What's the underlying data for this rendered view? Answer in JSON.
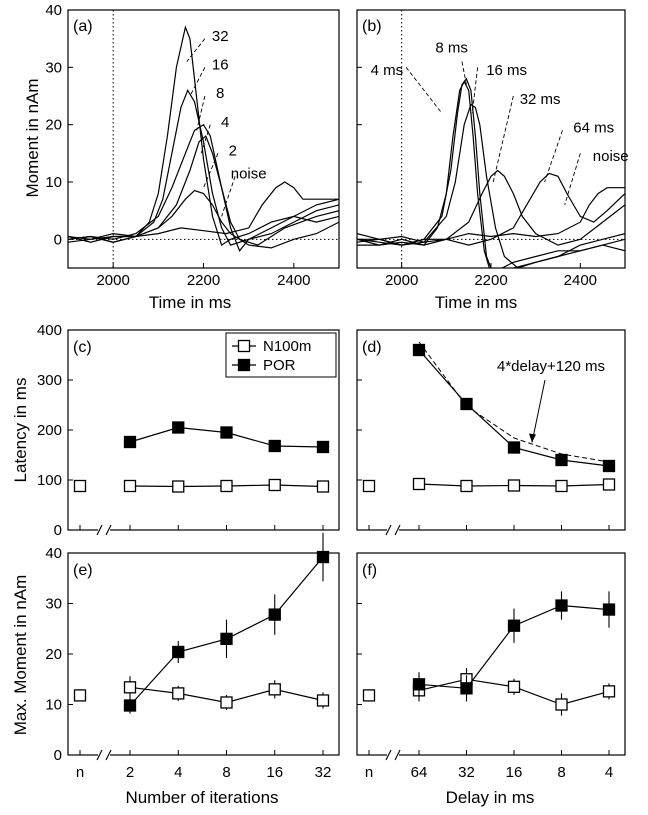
{
  "chart_data": [
    {
      "id": "a",
      "type": "line",
      "panel_label": "(a)",
      "xlabel": "Time in ms",
      "ylabel": "Moment in nAm",
      "xlim": [
        1900,
        2500
      ],
      "ylim": [
        -5,
        40
      ],
      "xticks": [
        2000,
        2200,
        2400
      ],
      "yticks": [
        0,
        10,
        20,
        30,
        40
      ],
      "vline_x": 2000,
      "hline_y": 0,
      "series": [
        {
          "name": "32",
          "x": [
            1900,
            1950,
            2000,
            2050,
            2080,
            2100,
            2120,
            2140,
            2160,
            2170,
            2180,
            2200,
            2220,
            2240,
            2260,
            2300,
            2350,
            2400,
            2450,
            2500
          ],
          "y": [
            0,
            0.5,
            -0.5,
            0.5,
            3,
            8,
            18,
            30,
            37,
            35,
            28,
            14,
            4,
            -1,
            0,
            1,
            3,
            4,
            3,
            4
          ]
        },
        {
          "name": "16",
          "x": [
            1900,
            1950,
            2000,
            2050,
            2090,
            2110,
            2130,
            2150,
            2165,
            2180,
            2200,
            2220,
            2240,
            2260,
            2300,
            2350,
            2400,
            2450,
            2500
          ],
          "y": [
            -0.5,
            0,
            0.5,
            0.5,
            3,
            7,
            15,
            23,
            26,
            24,
            17,
            8,
            2,
            -1,
            0,
            1,
            3,
            5,
            6
          ]
        },
        {
          "name": "8",
          "x": [
            1900,
            1950,
            2000,
            2050,
            2100,
            2130,
            2160,
            2180,
            2200,
            2215,
            2240,
            2260,
            2280,
            2300,
            2350,
            2400,
            2450,
            2500
          ],
          "y": [
            0,
            0.5,
            0,
            1,
            4,
            9,
            15,
            19,
            20,
            18,
            9,
            2,
            -2,
            0,
            2,
            4,
            6,
            7
          ]
        },
        {
          "name": "4",
          "x": [
            1900,
            1950,
            2000,
            2050,
            2100,
            2140,
            2170,
            2190,
            2205,
            2220,
            2240,
            2260,
            2280,
            2320,
            2380,
            2450,
            2500
          ],
          "y": [
            0.5,
            -0.5,
            0.5,
            0.5,
            2,
            6,
            12,
            17,
            18,
            15,
            9,
            3,
            0,
            -1,
            2,
            4,
            5
          ]
        },
        {
          "name": "2",
          "x": [
            1900,
            1950,
            2000,
            2050,
            2100,
            2130,
            2160,
            2180,
            2200,
            2220,
            2240,
            2260,
            2300,
            2350,
            2400,
            2450,
            2500
          ],
          "y": [
            0,
            0.5,
            -0.5,
            0.5,
            2,
            4,
            7,
            8.5,
            8,
            6,
            3,
            1,
            -1,
            -1.5,
            0,
            1,
            3
          ]
        },
        {
          "name": "noise",
          "x": [
            1900,
            1950,
            2000,
            2050,
            2100,
            2150,
            2200,
            2250,
            2300,
            2330,
            2360,
            2380,
            2400,
            2420,
            2450,
            2500
          ],
          "y": [
            0.5,
            0,
            1,
            0.5,
            1,
            2,
            1.5,
            1,
            2,
            6,
            9,
            10,
            9,
            7,
            7,
            7
          ]
        }
      ],
      "labels": [
        "32",
        "16",
        "8",
        "4",
        "2",
        "noise"
      ]
    },
    {
      "id": "b",
      "type": "line",
      "panel_label": "(b)",
      "xlabel": "Time in ms",
      "ylabel": "",
      "xlim": [
        1900,
        2500
      ],
      "ylim": [
        -5,
        40
      ],
      "xticks": [
        2000,
        2200,
        2400
      ],
      "yticks": [
        0,
        10,
        20,
        30,
        40
      ],
      "vline_x": 2000,
      "hline_y": 0,
      "series": [
        {
          "name": "4 ms",
          "x": [
            1900,
            1950,
            2000,
            2050,
            2080,
            2100,
            2115,
            2130,
            2140,
            2150,
            2160,
            2170,
            2185,
            2200,
            2250,
            2300,
            2350,
            2400,
            2450,
            2500
          ],
          "y": [
            0,
            -1,
            -0.5,
            -1,
            2,
            8,
            18,
            26,
            27.5,
            26,
            18,
            8,
            -2,
            -6,
            -4,
            -3,
            -2,
            -2,
            -1,
            -2
          ]
        },
        {
          "name": "8 ms",
          "x": [
            1900,
            1950,
            2000,
            2050,
            2090,
            2110,
            2125,
            2135,
            2145,
            2155,
            2165,
            2175,
            2190,
            2210,
            2250,
            2300,
            2350,
            2400,
            2450,
            2500
          ],
          "y": [
            0,
            -0.5,
            -1,
            0,
            4,
            12,
            22,
            27,
            28,
            26,
            18,
            8,
            -3,
            -7,
            -5,
            -4,
            -3,
            -2,
            -1,
            0
          ]
        },
        {
          "name": "16 ms",
          "x": [
            1900,
            1950,
            2000,
            2050,
            2100,
            2120,
            2140,
            2155,
            2165,
            2175,
            2190,
            2210,
            2230,
            2260,
            2300,
            2350,
            2400,
            2450,
            2500
          ],
          "y": [
            0,
            0,
            -1,
            -0.5,
            4,
            10,
            20,
            23.5,
            23,
            20,
            11,
            2,
            -3,
            -5,
            -4,
            -3,
            -1,
            0,
            1
          ]
        },
        {
          "name": "32 ms",
          "x": [
            1900,
            1950,
            2000,
            2050,
            2100,
            2150,
            2180,
            2200,
            2215,
            2230,
            2250,
            2270,
            2300,
            2350,
            2400,
            2450,
            2500
          ],
          "y": [
            -1,
            -1,
            0,
            -1,
            0,
            3,
            8,
            11,
            12,
            11,
            8,
            4,
            1,
            -1,
            0,
            3,
            6
          ]
        },
        {
          "name": "64 ms",
          "x": [
            1900,
            1950,
            2000,
            2050,
            2100,
            2150,
            2200,
            2250,
            2280,
            2310,
            2330,
            2350,
            2370,
            2400,
            2430,
            2460,
            2500
          ],
          "y": [
            -0.5,
            0,
            -1,
            0,
            0,
            -1,
            0,
            2,
            6,
            10,
            11.5,
            11,
            8,
            4,
            3,
            5,
            8
          ]
        },
        {
          "name": "noise",
          "x": [
            1900,
            1950,
            2000,
            2050,
            2100,
            2150,
            2200,
            2250,
            2300,
            2350,
            2400,
            2420,
            2440,
            2460,
            2480,
            2500
          ],
          "y": [
            1,
            0,
            0.5,
            -0.5,
            0,
            1,
            0.5,
            1,
            0.5,
            1,
            3,
            6,
            8,
            9,
            9,
            9
          ]
        }
      ],
      "labels": [
        "4 ms",
        "8 ms",
        "16 ms",
        "32 ms",
        "64 ms",
        "noise"
      ]
    },
    {
      "id": "c",
      "type": "line",
      "panel_label": "(c)",
      "ylabel": "Latency in ms",
      "ylim": [
        0,
        400
      ],
      "yticks": [
        0,
        100,
        200,
        300,
        400
      ],
      "categories": [
        "n",
        "2",
        "4",
        "8",
        "16",
        "32"
      ],
      "legend": {
        "position": "top-right",
        "entries": [
          "N100m",
          "POR"
        ]
      },
      "series": [
        {
          "name": "N100m",
          "marker": "open-square",
          "values": [
            88,
            88,
            87,
            88,
            90,
            87
          ]
        },
        {
          "name": "POR",
          "marker": "filled-square",
          "values": [
            null,
            176,
            205,
            195,
            168,
            166
          ]
        }
      ]
    },
    {
      "id": "d",
      "type": "line",
      "panel_label": "(d)",
      "ylabel": "",
      "ylim": [
        0,
        400
      ],
      "yticks": [
        0,
        100,
        200,
        300,
        400
      ],
      "categories": [
        "n",
        "64",
        "32",
        "16",
        "8",
        "4"
      ],
      "annotation": "4*delay+120 ms",
      "series": [
        {
          "name": "N100m",
          "marker": "open-square",
          "values": [
            88,
            92,
            88,
            89,
            88,
            91
          ]
        },
        {
          "name": "POR",
          "marker": "filled-square",
          "values": [
            null,
            360,
            252,
            165,
            140,
            128
          ]
        },
        {
          "name": "4*delay+120 ms",
          "style": "dashed",
          "values": [
            null,
            376,
            248,
            184,
            152,
            136
          ]
        }
      ]
    },
    {
      "id": "e",
      "type": "line",
      "panel_label": "(e)",
      "xlabel": "Number of iterations",
      "ylabel": "Max. Moment in nAm",
      "ylim": [
        0,
        40
      ],
      "yticks": [
        0,
        10,
        20,
        30,
        40
      ],
      "categories": [
        "n",
        "2",
        "4",
        "8",
        "16",
        "32"
      ],
      "series": [
        {
          "name": "N100m",
          "marker": "open-square",
          "values": [
            11.8,
            13.4,
            12.2,
            10.4,
            13.0,
            10.8
          ],
          "errors": [
            1.2,
            2.2,
            1.5,
            1.5,
            1.8,
            1.6
          ]
        },
        {
          "name": "POR",
          "marker": "filled-square",
          "values": [
            null,
            9.8,
            20.4,
            23.0,
            27.8,
            39.2
          ],
          "errors": [
            null,
            1.6,
            2.2,
            3.8,
            4.0,
            4.8
          ]
        }
      ]
    },
    {
      "id": "f",
      "type": "line",
      "panel_label": "(f)",
      "xlabel": "Delay in ms",
      "ylabel": "",
      "ylim": [
        0,
        40
      ],
      "yticks": [
        0,
        10,
        20,
        30,
        40
      ],
      "categories": [
        "n",
        "64",
        "32",
        "16",
        "8",
        "4"
      ],
      "series": [
        {
          "name": "N100m",
          "marker": "open-square",
          "values": [
            11.8,
            12.8,
            15.0,
            13.5,
            10.0,
            12.6
          ],
          "errors": [
            1.2,
            2.2,
            2.2,
            1.6,
            2.2,
            1.6
          ]
        },
        {
          "name": "POR",
          "marker": "filled-square",
          "values": [
            null,
            14.0,
            13.2,
            25.6,
            29.6,
            28.8
          ],
          "errors": [
            null,
            2.4,
            2.6,
            3.4,
            2.8,
            3.6
          ]
        }
      ]
    }
  ]
}
